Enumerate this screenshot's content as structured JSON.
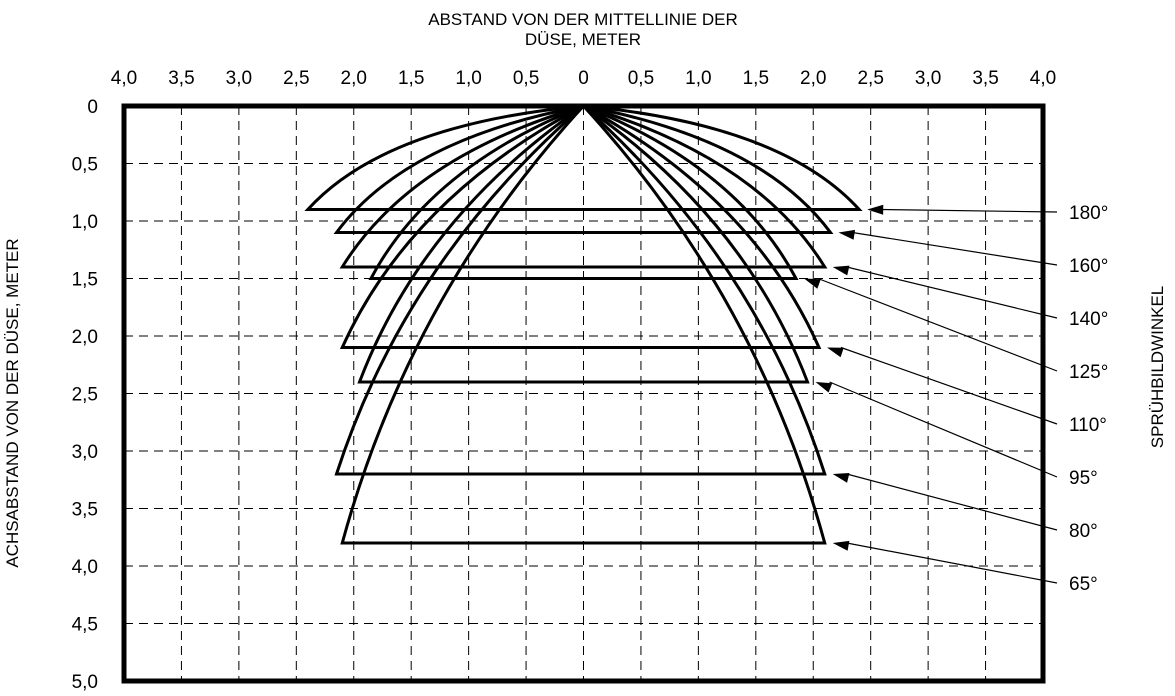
{
  "chart_data": {
    "type": "line",
    "title_lines": [
      "ABSTAND VON DER MITTELLINIE DER",
      "DÜSE, METER"
    ],
    "ylabel": "ACHSABSTAND VON DER DÜSE, METER",
    "right_label": "SPRÜHBILDWINKEL",
    "x_tick_labels": [
      "4,0",
      "3,5",
      "3,0",
      "2,5",
      "2,0",
      "1,5",
      "1,0",
      "0,5",
      "0",
      "0,5",
      "1,0",
      "1,5",
      "2,0",
      "2,5",
      "3,0",
      "3,5",
      "4,0"
    ],
    "y_tick_labels": [
      "0",
      "0,5",
      "1,0",
      "1,5",
      "2,0",
      "2,5",
      "3,0",
      "3,5",
      "4,0",
      "4,5",
      "5,0"
    ],
    "xlim": [
      -4.0,
      4.0
    ],
    "ylim": [
      0,
      5.0
    ],
    "grid": true,
    "series": [
      {
        "name": "180°",
        "depth": 0.9,
        "left_x": -2.4,
        "right_x": 2.4
      },
      {
        "name": "160°",
        "depth": 1.1,
        "left_x": -2.15,
        "right_x": 2.15
      },
      {
        "name": "140°",
        "depth": 1.4,
        "left_x": -2.1,
        "right_x": 2.1
      },
      {
        "name": "125°",
        "depth": 1.5,
        "left_x": -1.85,
        "right_x": 1.85
      },
      {
        "name": "110°",
        "depth": 2.1,
        "left_x": -2.1,
        "right_x": 2.05
      },
      {
        "name": "95°",
        "depth": 2.4,
        "left_x": -1.95,
        "right_x": 1.95
      },
      {
        "name": "80°",
        "depth": 3.2,
        "left_x": -2.15,
        "right_x": 2.1
      },
      {
        "name": "65°",
        "depth": 3.8,
        "left_x": -2.1,
        "right_x": 2.1
      }
    ]
  }
}
